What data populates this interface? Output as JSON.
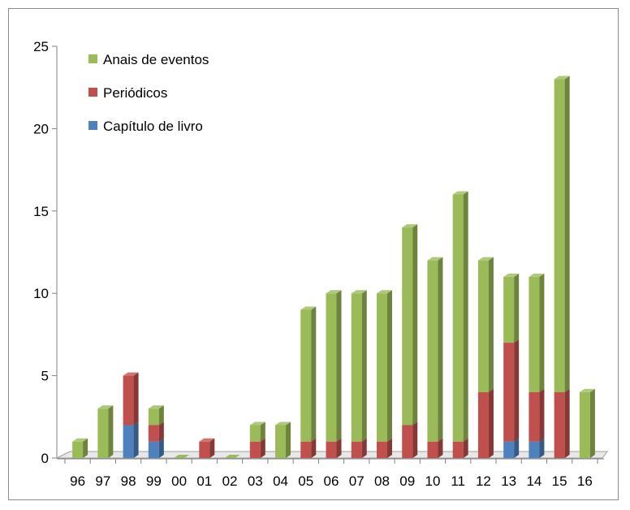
{
  "chart_data": {
    "type": "bar",
    "stacked": true,
    "style": "3d-columns",
    "categories": [
      "96",
      "97",
      "98",
      "99",
      "00",
      "01",
      "02",
      "03",
      "04",
      "05",
      "06",
      "07",
      "08",
      "09",
      "10",
      "11",
      "12",
      "13",
      "14",
      "15",
      "16"
    ],
    "series": [
      {
        "name": "Capítulo de livro",
        "color": "#4F81BD",
        "values": [
          0,
          0,
          2,
          1,
          0,
          0,
          0,
          0,
          0,
          0,
          0,
          0,
          0,
          0,
          0,
          0,
          0,
          1,
          1,
          0,
          0
        ]
      },
      {
        "name": "Periódicos",
        "color": "#C0504D",
        "values": [
          0,
          0,
          3,
          1,
          0,
          1,
          0,
          1,
          0,
          1,
          1,
          1,
          1,
          2,
          1,
          1,
          4,
          6,
          3,
          4,
          0
        ]
      },
      {
        "name": "Anais de eventos",
        "color": "#9BBB59",
        "values": [
          1,
          3,
          0,
          1,
          0,
          0,
          0,
          1,
          2,
          8,
          9,
          9,
          9,
          12,
          11,
          15,
          8,
          4,
          7,
          19,
          4
        ]
      }
    ],
    "legend_order": [
      "Anais de eventos",
      "Periódicos",
      "Capítulo de livro"
    ],
    "yticks": [
      "0",
      "5",
      "10",
      "15",
      "20",
      "25"
    ],
    "ylim": [
      0,
      25
    ],
    "grid": false,
    "legend_position": "top-left"
  }
}
